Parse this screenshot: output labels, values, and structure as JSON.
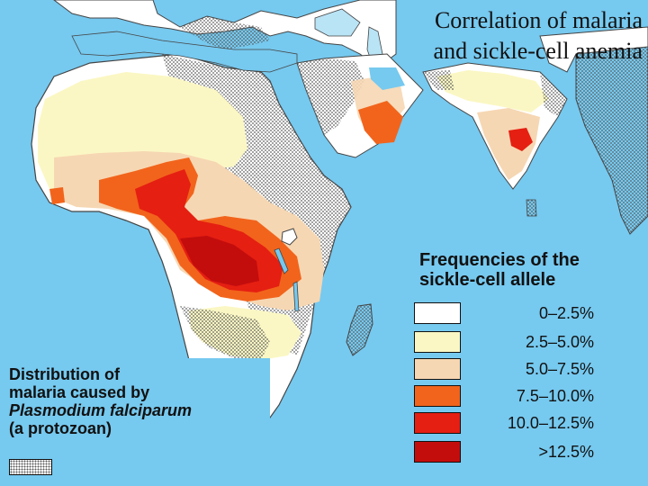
{
  "title": {
    "line1": "Correlation of malaria",
    "line2": "and sickle-cell anemia"
  },
  "legend": {
    "title_line1": "Frequencies of the",
    "title_line2": "sickle-cell allele",
    "items": [
      {
        "label": "0–2.5%",
        "color": "#ffffff"
      },
      {
        "label": "2.5–5.0%",
        "color": "#fbf7c4"
      },
      {
        "label": "5.0–7.5%",
        "color": "#f6d7b3"
      },
      {
        "label": "7.5–10.0%",
        "color": "#f2641c"
      },
      {
        "label": "10.0–12.5%",
        "color": "#e51f12"
      },
      {
        "label": ">12.5%",
        "color": "#c30d0d"
      }
    ]
  },
  "distribution_legend": {
    "line1": "Distribution of",
    "line2": "malaria caused by",
    "line3": "Plasmodium falciparum",
    "line4": "(a protozoan)"
  },
  "colors": {
    "ocean": "#76c9ef",
    "land": "#ffffff",
    "stipple": "#555555"
  }
}
